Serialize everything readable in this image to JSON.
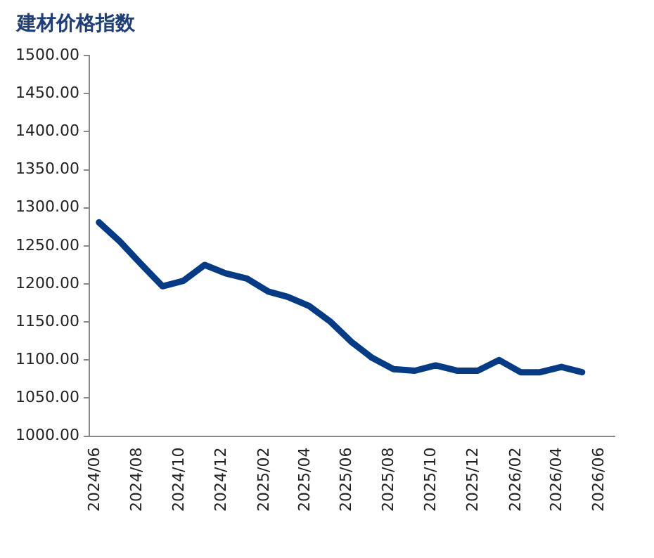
{
  "chart_data": {
    "type": "line",
    "title": "建材价格指数",
    "x": [
      "2024-06-15",
      "2024-07-15",
      "2024-08-15",
      "2024-09-15",
      "2024-10-15",
      "2024-11-15",
      "2024-12-15",
      "2025-01-15",
      "2025-02-15",
      "2025-03-15",
      "2025-04-15",
      "2025-05-15",
      "2025-06-15",
      "2025-07-15",
      "2025-08-15",
      "2025-09-15",
      "2025-10-15",
      "2025-11-15",
      "2025-12-15",
      "2026-01-15",
      "2026-02-15",
      "2026-03-15",
      "2026-04-15",
      "2026-05-15"
    ],
    "series": [
      {
        "color": "#033b87",
        "values": [
          1281,
          1256,
          1226,
          1197,
          1204,
          1225,
          1214,
          1207,
          1190,
          1183,
          1171,
          1151,
          1124,
          1103,
          1088,
          1086,
          1093,
          1086,
          1086,
          1100,
          1084,
          1084,
          1091,
          1084
        ]
      }
    ],
    "xlim": [
      "2024-06",
      "2026-07"
    ],
    "xticks": [
      {
        "value": "2024-06",
        "label": "2024/06"
      },
      {
        "value": "2024-08",
        "label": "2024/08"
      },
      {
        "value": "2024-10",
        "label": "2024/10"
      },
      {
        "value": "2024-12",
        "label": "2024/12"
      },
      {
        "value": "2025-02",
        "label": "2025/02"
      },
      {
        "value": "2025-04",
        "label": "2025/04"
      },
      {
        "value": "2025-06",
        "label": "2025/06"
      },
      {
        "value": "2025-08",
        "label": "2025/08"
      },
      {
        "value": "2025-10",
        "label": "2025/10"
      },
      {
        "value": "2025-12",
        "label": "2025/12"
      },
      {
        "value": "2026-02",
        "label": "2026/02"
      },
      {
        "value": "2026-04",
        "label": "2026/04"
      },
      {
        "value": "2026-06",
        "label": "2026/06"
      }
    ],
    "ylim": [
      1000,
      1500
    ],
    "yticks": [
      {
        "value": 1000,
        "label": "1000.00"
      },
      {
        "value": 1050,
        "label": "1050.00"
      },
      {
        "value": 1100,
        "label": "1100.00"
      },
      {
        "value": 1150,
        "label": "1150.00"
      },
      {
        "value": 1200,
        "label": "1200.00"
      },
      {
        "value": 1250,
        "label": "1250.00"
      },
      {
        "value": 1300,
        "label": "1300.00"
      },
      {
        "value": 1350,
        "label": "1350.00"
      },
      {
        "value": 1400,
        "label": "1400.00"
      },
      {
        "value": 1450,
        "label": "1450.00"
      },
      {
        "value": 1500,
        "label": "1500.00"
      }
    ],
    "grid": false,
    "legend": false,
    "marker": "none",
    "line_style": "solid"
  }
}
